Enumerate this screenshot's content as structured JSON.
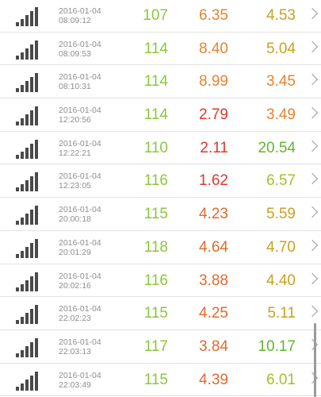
{
  "colors": {
    "green": "#8cc63e",
    "yellow_green": "#a6bf2c",
    "gold": "#c9a121",
    "orange": "#e5832f",
    "orange_red": "#e26a2c",
    "red": "#d93a2f",
    "bright_green": "#62b530",
    "gray_text": "#8e8e8e"
  },
  "rows": [
    {
      "date": "2016-01-04",
      "time": "08:09:12",
      "ping": "107",
      "ping_color": "#8cc63e",
      "down": "6.35",
      "down_color": "#e5832f",
      "up": "4.53",
      "up_color": "#c9a121"
    },
    {
      "date": "2016-01-04",
      "time": "08:09:53",
      "ping": "114",
      "ping_color": "#8cc63e",
      "down": "8.40",
      "down_color": "#e5832f",
      "up": "5.04",
      "up_color": "#c9a121"
    },
    {
      "date": "2016-01-04",
      "time": "08:10:31",
      "ping": "114",
      "ping_color": "#8cc63e",
      "down": "8.99",
      "down_color": "#e5832f",
      "up": "3.45",
      "up_color": "#e5832f"
    },
    {
      "date": "2016-01-04",
      "time": "12:20:56",
      "ping": "114",
      "ping_color": "#8cc63e",
      "down": "2.79",
      "down_color": "#d93a2f",
      "up": "3.49",
      "up_color": "#e5832f"
    },
    {
      "date": "2016-01-04",
      "time": "12:22:21",
      "ping": "110",
      "ping_color": "#8cc63e",
      "down": "2.11",
      "down_color": "#d93a2f",
      "up": "20.54",
      "up_color": "#62b530"
    },
    {
      "date": "2016-01-04",
      "time": "12:23:05",
      "ping": "116",
      "ping_color": "#8cc63e",
      "down": "1.62",
      "down_color": "#d93a2f",
      "up": "6.57",
      "up_color": "#a6bf2c"
    },
    {
      "date": "2016-01-04",
      "time": "20:00:18",
      "ping": "115",
      "ping_color": "#8cc63e",
      "down": "4.23",
      "down_color": "#e26a2c",
      "up": "5.59",
      "up_color": "#c9a121"
    },
    {
      "date": "2016-01-04",
      "time": "20:01:29",
      "ping": "118",
      "ping_color": "#8cc63e",
      "down": "4.64",
      "down_color": "#e26a2c",
      "up": "4.70",
      "up_color": "#c9a121"
    },
    {
      "date": "2016-01-04",
      "time": "20:02:16",
      "ping": "116",
      "ping_color": "#8cc63e",
      "down": "3.88",
      "down_color": "#e26a2c",
      "up": "4.40",
      "up_color": "#c9a121"
    },
    {
      "date": "2016-01-04",
      "time": "22:02:23",
      "ping": "115",
      "ping_color": "#8cc63e",
      "down": "4.25",
      "down_color": "#e26a2c",
      "up": "5.11",
      "up_color": "#c9a121"
    },
    {
      "date": "2016-01-04",
      "time": "22:03:13",
      "ping": "117",
      "ping_color": "#8cc63e",
      "down": "3.84",
      "down_color": "#e26a2c",
      "up": "10.17",
      "up_color": "#62b530"
    },
    {
      "date": "2016-01-04",
      "time": "22:03:49",
      "ping": "115",
      "ping_color": "#8cc63e",
      "down": "4.39",
      "down_color": "#e26a2c",
      "up": "6.01",
      "up_color": "#a6bf2c"
    }
  ]
}
